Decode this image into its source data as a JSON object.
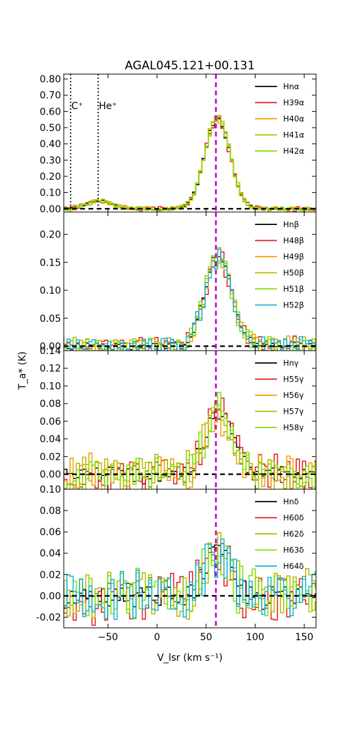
{
  "title": "AGAL045.121+00.131",
  "xlabel": "V_lsr (km s⁻¹)",
  "ylabel": "T_a* (K)",
  "v_peak": 60,
  "colors": {
    "Hn": "#000000",
    "red": "#e41a1c",
    "orange": "#f0a000",
    "olive": "#b5b800",
    "lime": "#7fe000",
    "cyan": "#17b4cf",
    "vline": "#c000c0"
  },
  "chart_data": [
    {
      "type": "line",
      "xlim": [
        -95,
        162
      ],
      "ylim": [
        -0.02,
        0.83
      ],
      "yticks": [
        0.0,
        0.1,
        0.2,
        0.3,
        0.4,
        0.5,
        0.6,
        0.7,
        0.8
      ],
      "ytick_labels": [
        "0.00",
        "0.10",
        "0.20",
        "0.30",
        "0.40",
        "0.50",
        "0.60",
        "0.70",
        "0.80"
      ],
      "legend": "top-right",
      "annotations": [
        {
          "label": "C⁺",
          "v": -88
        },
        {
          "label": "He⁺",
          "v": -60
        }
      ],
      "profile": {
        "amp": 0.56,
        "center": 60,
        "fwhm": 30,
        "noise": 0.008,
        "bumps": [
          {
            "amp": 0.05,
            "center": -60,
            "fwhm": 30
          }
        ]
      },
      "series": [
        {
          "name": "Hnα",
          "color": "Hn"
        },
        {
          "name": "H39α",
          "color": "red"
        },
        {
          "name": "H40α",
          "color": "orange"
        },
        {
          "name": "H41α",
          "color": "olive"
        },
        {
          "name": "H42α",
          "color": "lime"
        }
      ]
    },
    {
      "type": "line",
      "xlim": [
        -95,
        162
      ],
      "ylim": [
        -0.008,
        0.24
      ],
      "yticks": [
        0.0,
        0.05,
        0.1,
        0.15,
        0.2
      ],
      "ytick_labels": [
        "0.00",
        "0.05",
        "0.10",
        "0.15",
        "0.20"
      ],
      "legend": "top-right",
      "profile": {
        "amp": 0.16,
        "center": 61,
        "fwhm": 32,
        "noise": 0.01,
        "bumps": []
      },
      "series": [
        {
          "name": "Hnβ",
          "color": "Hn"
        },
        {
          "name": "H48β",
          "color": "red"
        },
        {
          "name": "H49β",
          "color": "orange"
        },
        {
          "name": "H50β",
          "color": "olive"
        },
        {
          "name": "H51β",
          "color": "lime"
        },
        {
          "name": "H52β",
          "color": "cyan"
        }
      ]
    },
    {
      "type": "line",
      "xlim": [
        -95,
        162
      ],
      "ylim": [
        -0.017,
        0.14
      ],
      "yticks": [
        0.0,
        0.02,
        0.04,
        0.06,
        0.08,
        0.1,
        0.12,
        0.14
      ],
      "ytick_labels": [
        "0.00",
        "0.02",
        "0.04",
        "0.06",
        "0.08",
        "0.10",
        "0.12",
        "0.14"
      ],
      "legend": "top-right",
      "profile": {
        "amp": 0.07,
        "center": 62,
        "fwhm": 32,
        "noise": 0.012,
        "bumps": []
      },
      "series": [
        {
          "name": "Hnγ",
          "color": "Hn"
        },
        {
          "name": "H55γ",
          "color": "red"
        },
        {
          "name": "H56γ",
          "color": "orange"
        },
        {
          "name": "H57γ",
          "color": "olive"
        },
        {
          "name": "H58γ",
          "color": "lime"
        }
      ]
    },
    {
      "type": "line",
      "xlim": [
        -95,
        162
      ],
      "ylim": [
        -0.03,
        0.1
      ],
      "yticks": [
        -0.02,
        0.0,
        0.02,
        0.04,
        0.06,
        0.08,
        0.1
      ],
      "ytick_labels": [
        "-0.02",
        "0.00",
        "0.02",
        "0.04",
        "0.06",
        "0.08",
        "0.10"
      ],
      "xticks": [
        -50,
        0,
        50,
        100,
        150
      ],
      "xtick_labels": [
        "−50",
        "0",
        "50",
        "100",
        "150"
      ],
      "legend": "top-right",
      "profile": {
        "amp": 0.04,
        "center": 60,
        "fwhm": 30,
        "noise": 0.014,
        "bumps": []
      },
      "series": [
        {
          "name": "Hnδ",
          "color": "Hn"
        },
        {
          "name": "H60δ",
          "color": "red"
        },
        {
          "name": "H62δ",
          "color": "olive"
        },
        {
          "name": "H63δ",
          "color": "lime"
        },
        {
          "name": "H64δ",
          "color": "cyan"
        }
      ]
    }
  ]
}
